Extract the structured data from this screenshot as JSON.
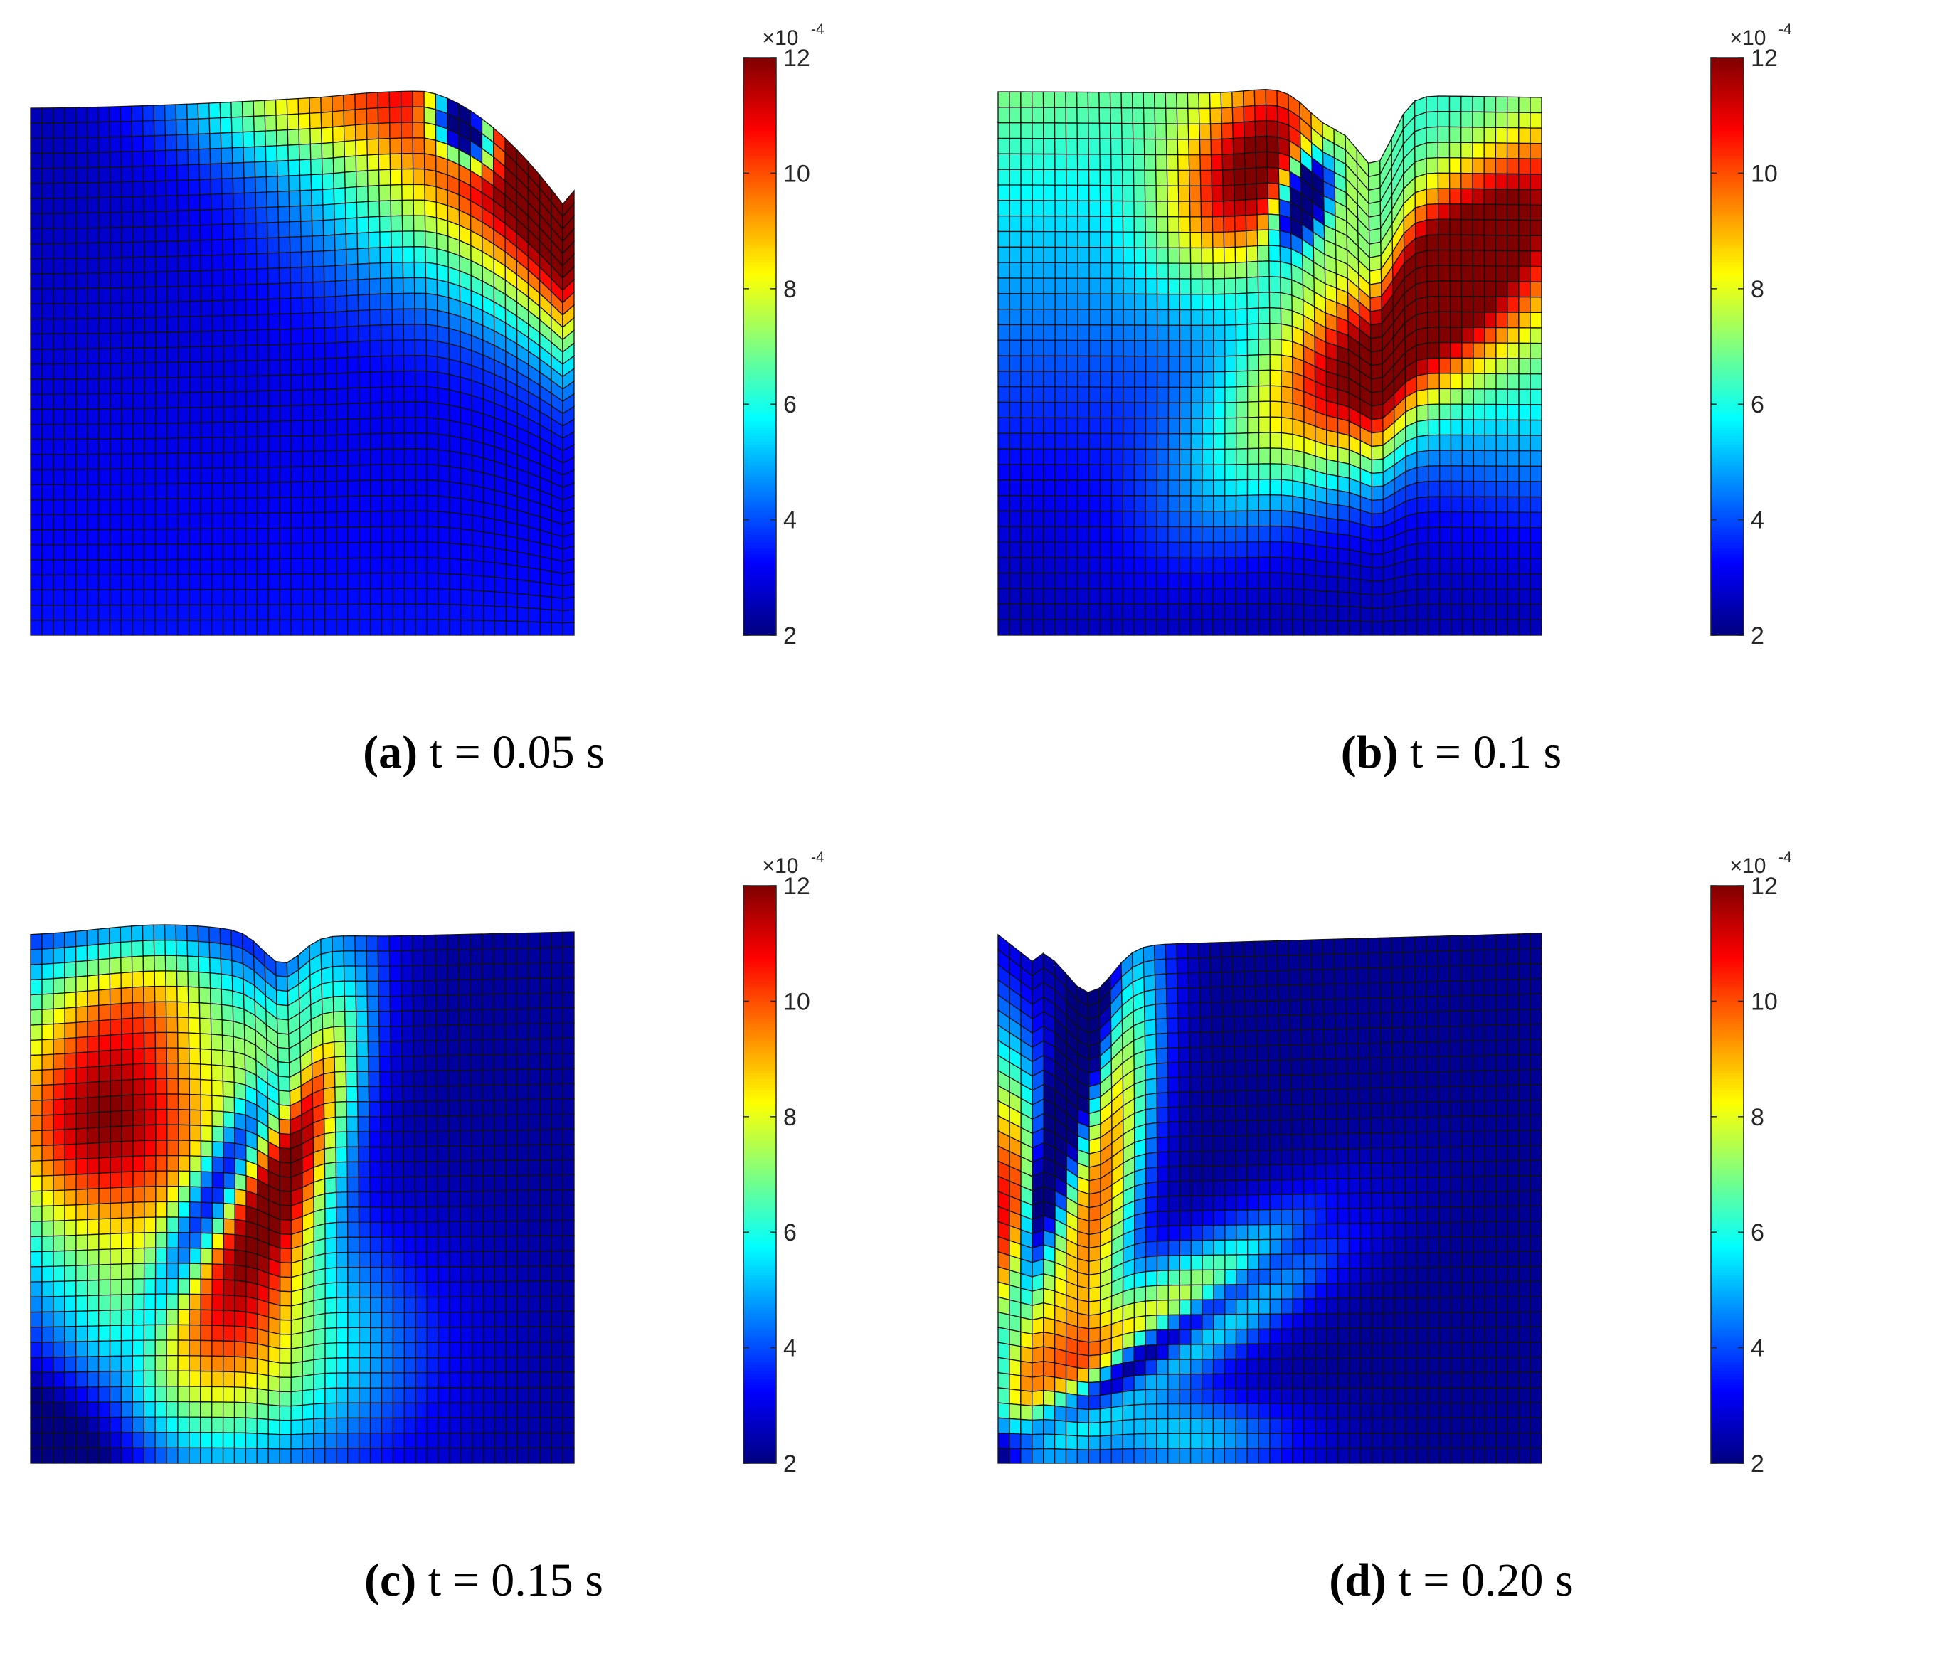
{
  "chart_data": [
    {
      "type": "heatmap",
      "caption_letter": "(a)",
      "caption_text": "t = 0.05 s",
      "colorbar": {
        "min": 2,
        "max": 12,
        "ticks": [
          "2",
          "4",
          "6",
          "8",
          "10",
          "12"
        ],
        "multiplier": "×10",
        "exponent": "-4",
        "colormap": "jet"
      }
    },
    {
      "type": "heatmap",
      "caption_letter": "(b)",
      "caption_text": "t = 0.1 s",
      "colorbar": {
        "min": 2,
        "max": 12,
        "ticks": [
          "2",
          "4",
          "6",
          "8",
          "10",
          "12"
        ],
        "multiplier": "×10",
        "exponent": "-4",
        "colormap": "jet"
      }
    },
    {
      "type": "heatmap",
      "caption_letter": "(c)",
      "caption_text": "t = 0.15 s",
      "colorbar": {
        "min": 2,
        "max": 12,
        "ticks": [
          "2",
          "4",
          "6",
          "8",
          "10",
          "12"
        ],
        "multiplier": "×10",
        "exponent": "-4",
        "colormap": "jet"
      }
    },
    {
      "type": "heatmap",
      "caption_letter": "(d)",
      "caption_text": "t = 0.20 s",
      "colorbar": {
        "min": 2,
        "max": 12,
        "ticks": [
          "2",
          "4",
          "6",
          "8",
          "10",
          "12"
        ],
        "multiplier": "×10",
        "exponent": "-4",
        "colormap": "jet"
      }
    }
  ]
}
